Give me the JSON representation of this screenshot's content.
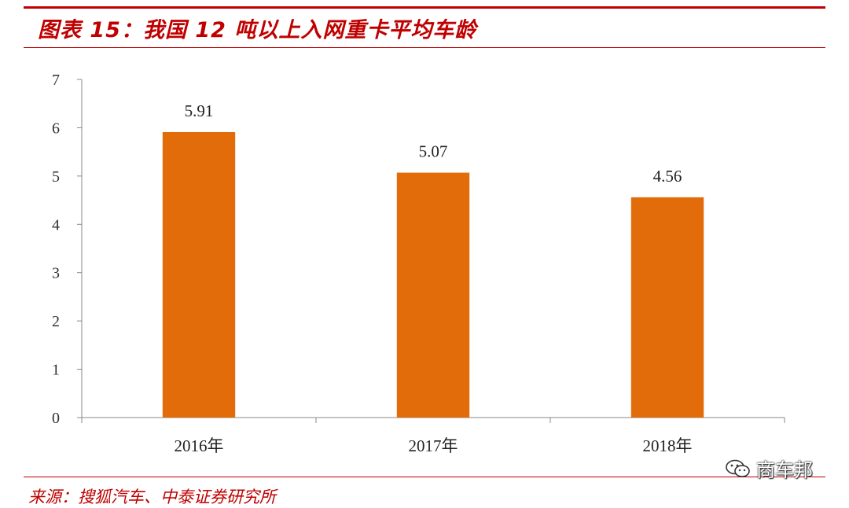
{
  "header": {
    "title": "图表 15：我国 12 吨以上入网重卡平均车龄"
  },
  "footer": {
    "source": "来源：搜狐汽车、中泰证券研究所"
  },
  "watermark": {
    "text": "商车邦",
    "icon": "wechat-icon"
  },
  "colors": {
    "bar": "#e36c0a",
    "accent": "#c00000",
    "axis": "#888888"
  },
  "chart_data": {
    "type": "bar",
    "categories": [
      "2016年",
      "2017年",
      "2018年"
    ],
    "values": [
      5.91,
      5.07,
      4.56
    ],
    "data_labels": [
      "5.91",
      "5.07",
      "4.56"
    ],
    "ylim": [
      0,
      7
    ],
    "yticks": [
      0,
      1,
      2,
      3,
      4,
      5,
      6,
      7
    ],
    "grid": false,
    "legend": "none"
  }
}
